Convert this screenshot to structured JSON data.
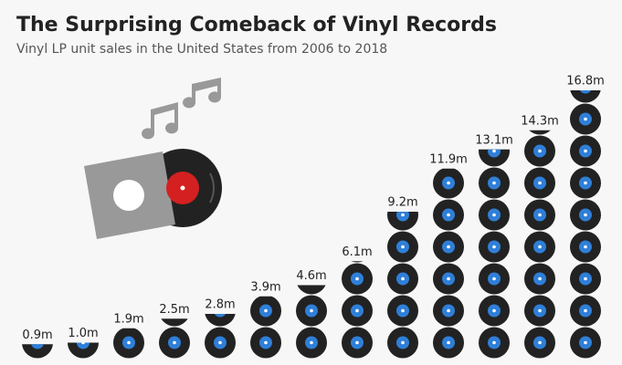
{
  "chart_data": {
    "type": "pictogram",
    "title": "The Surprising Comeback of Vinyl Records",
    "subtitle": "Vinyl LP unit sales in the United States from 2006 to 2018",
    "values": [
      0.9,
      1.0,
      1.9,
      2.5,
      2.8,
      3.9,
      4.6,
      6.1,
      9.2,
      11.9,
      13.1,
      14.3,
      16.8
    ],
    "value_labels": [
      "0.9m",
      "1.0m",
      "1.9m",
      "2.5m",
      "2.8m",
      "3.9m",
      "4.6m",
      "6.1m",
      "9.2m",
      "11.9m",
      "13.1m",
      "14.3m",
      "16.8m"
    ],
    "color": "#222222",
    "accent_color": "#2f7fd8"
  }
}
